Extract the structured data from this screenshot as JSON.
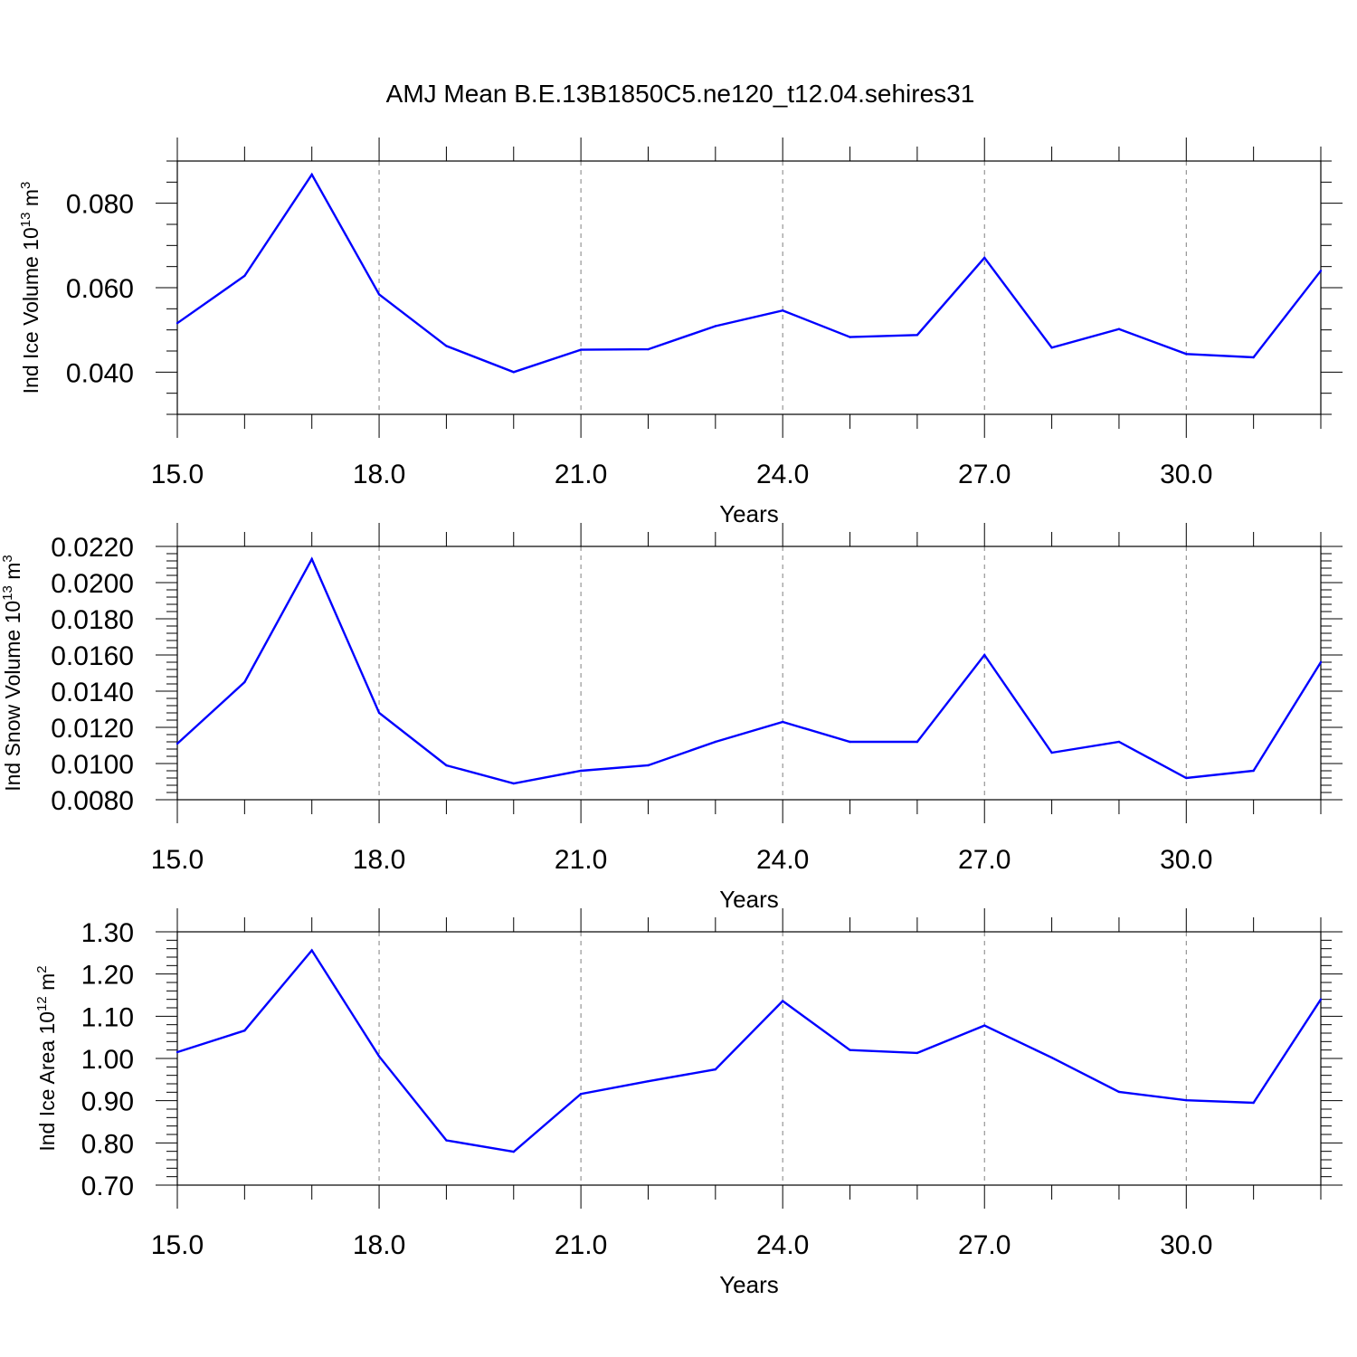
{
  "title": "AMJ Mean B.E.13B1850C5.ne120_t12.04.sehires31",
  "colors": {
    "line": "#0000ff",
    "axis": "#000000",
    "grid": "#808080"
  },
  "chart_data": [
    {
      "type": "line",
      "ylabel_main": "Ind Ice Volume 10",
      "ylabel_exp": "13",
      "ylabel_unit": " m",
      "ylabel_unit_exp": "3",
      "xlabel": "Years",
      "xlim": [
        15,
        32
      ],
      "ylim": [
        0.03,
        0.09
      ],
      "x_ticks": [
        15,
        18,
        21,
        24,
        27,
        30
      ],
      "x_tick_labels": [
        "15.0",
        "18.0",
        "21.0",
        "24.0",
        "27.0",
        "30.0"
      ],
      "y_ticks": [
        0.04,
        0.06,
        0.08
      ],
      "y_tick_labels": [
        "0.040",
        "0.060",
        "0.080"
      ],
      "y_minor_step": 0.005,
      "grid": "vertical dashed at major x ticks",
      "x": [
        15,
        16,
        17,
        18,
        19,
        20,
        21,
        22,
        23,
        24,
        25,
        26,
        27,
        28,
        29,
        30,
        31,
        32
      ],
      "values": [
        0.0516,
        0.0628,
        0.0868,
        0.0584,
        0.0462,
        0.04,
        0.0453,
        0.0454,
        0.0509,
        0.0546,
        0.0483,
        0.0488,
        0.0671,
        0.0458,
        0.0502,
        0.0443,
        0.0435,
        0.064
      ]
    },
    {
      "type": "line",
      "ylabel_main": "Ind Snow Volume 10",
      "ylabel_exp": "13",
      "ylabel_unit": " m",
      "ylabel_unit_exp": "3",
      "xlabel": "Years",
      "xlim": [
        15,
        32
      ],
      "ylim": [
        0.008,
        0.022
      ],
      "x_ticks": [
        15,
        18,
        21,
        24,
        27,
        30
      ],
      "x_tick_labels": [
        "15.0",
        "18.0",
        "21.0",
        "24.0",
        "27.0",
        "30.0"
      ],
      "y_ticks": [
        0.008,
        0.01,
        0.012,
        0.014,
        0.016,
        0.018,
        0.02,
        0.022
      ],
      "y_tick_labels": [
        "0.0080",
        "0.0100",
        "0.0120",
        "0.0140",
        "0.0160",
        "0.0180",
        "0.0200",
        "0.0220"
      ],
      "y_minor_step": 0.0004,
      "grid": "vertical dashed at major x ticks",
      "x": [
        15,
        16,
        17,
        18,
        19,
        20,
        21,
        22,
        23,
        24,
        25,
        26,
        27,
        28,
        29,
        30,
        31,
        32
      ],
      "values": [
        0.0111,
        0.0145,
        0.0213,
        0.0128,
        0.0099,
        0.0089,
        0.0096,
        0.0099,
        0.0112,
        0.0123,
        0.0112,
        0.0112,
        0.016,
        0.0106,
        0.0112,
        0.0092,
        0.0096,
        0.0156
      ]
    },
    {
      "type": "line",
      "ylabel_main": "Ind Ice Area 10",
      "ylabel_exp": "12",
      "ylabel_unit": " m",
      "ylabel_unit_exp": "2",
      "xlabel": "Years",
      "xlim": [
        15,
        32
      ],
      "ylim": [
        0.7,
        1.3
      ],
      "x_ticks": [
        15,
        18,
        21,
        24,
        27,
        30
      ],
      "x_tick_labels": [
        "15.0",
        "18.0",
        "21.0",
        "24.0",
        "27.0",
        "30.0"
      ],
      "y_ticks": [
        0.7,
        0.8,
        0.9,
        1.0,
        1.1,
        1.2,
        1.3
      ],
      "y_tick_labels": [
        "0.70",
        "0.80",
        "0.90",
        "1.00",
        "1.10",
        "1.20",
        "1.30"
      ],
      "y_minor_step": 0.02,
      "grid": "vertical dashed at major x ticks",
      "x": [
        15,
        16,
        17,
        18,
        19,
        20,
        21,
        22,
        23,
        24,
        25,
        26,
        27,
        28,
        29,
        30,
        31,
        32
      ],
      "values": [
        1.015,
        1.066,
        1.256,
        1.005,
        0.806,
        0.779,
        0.916,
        0.946,
        0.974,
        1.136,
        1.02,
        1.013,
        1.078,
        1.002,
        0.921,
        0.901,
        0.895,
        1.14
      ]
    }
  ]
}
